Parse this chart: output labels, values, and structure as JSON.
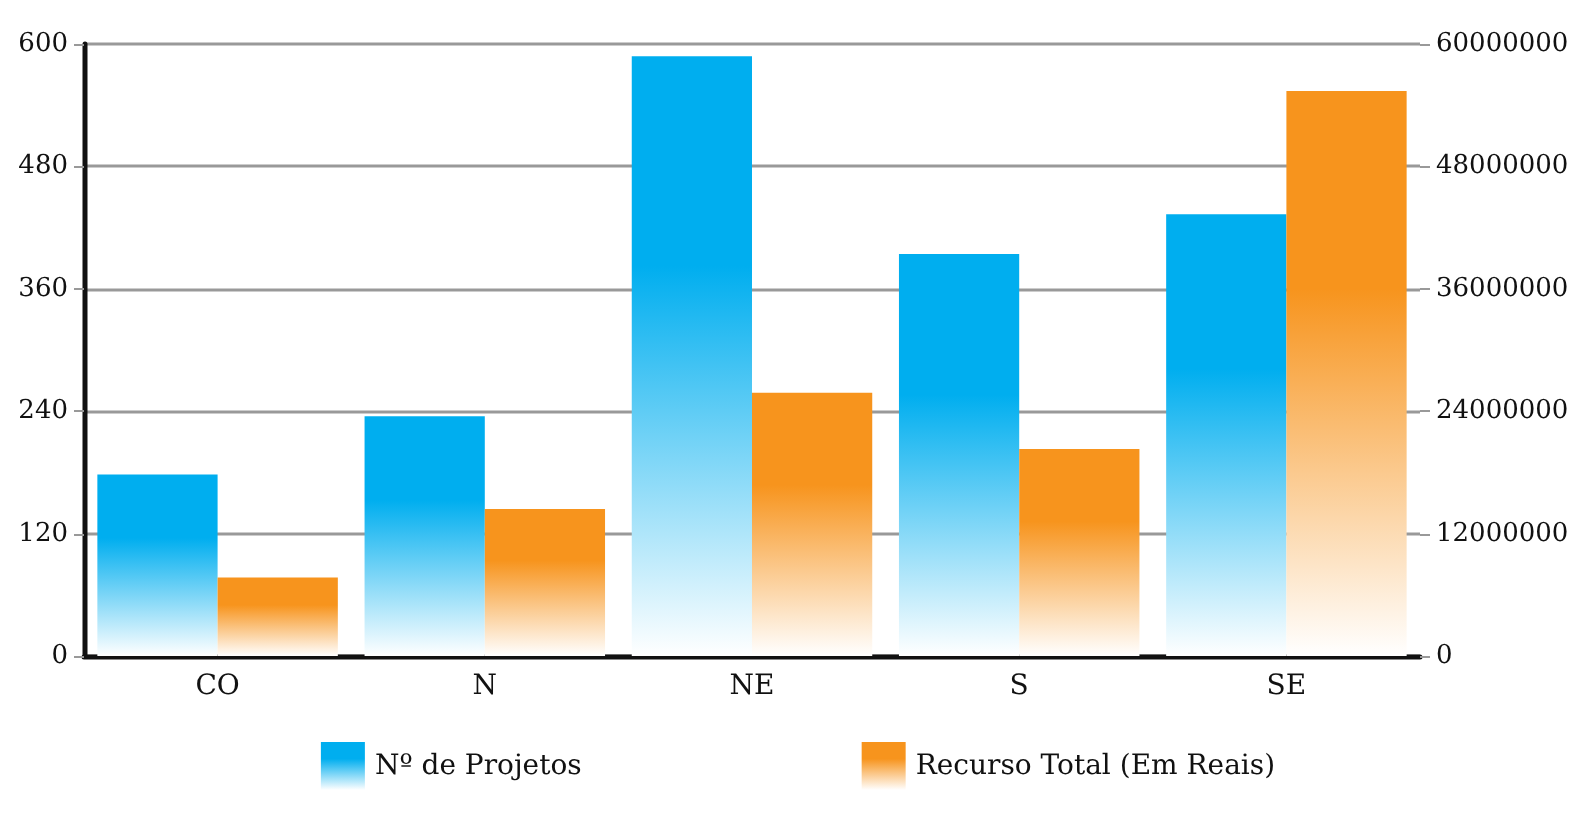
{
  "chart_data": {
    "type": "bar",
    "categories": [
      "CO",
      "N",
      "NE",
      "S",
      "SE"
    ],
    "series": [
      {
        "name": "Nº de Projetos",
        "color": "#00aeef",
        "values": [
          178,
          235,
          588,
          394,
          433
        ]
      },
      {
        "name": "Recurso Total (Em Reais)",
        "color": "#f7941d",
        "axis": "y2",
        "values": [
          7700000,
          14400000,
          25800000,
          20300000,
          55400000
        ]
      }
    ],
    "ylim": [
      0,
      600
    ],
    "yticks": [
      0,
      120,
      240,
      360,
      480,
      600
    ],
    "y2lim": [
      0,
      60000000
    ],
    "y2ticks": [
      0,
      12000000,
      24000000,
      36000000,
      48000000,
      60000000
    ],
    "grid": "y",
    "legend": "bottom"
  }
}
